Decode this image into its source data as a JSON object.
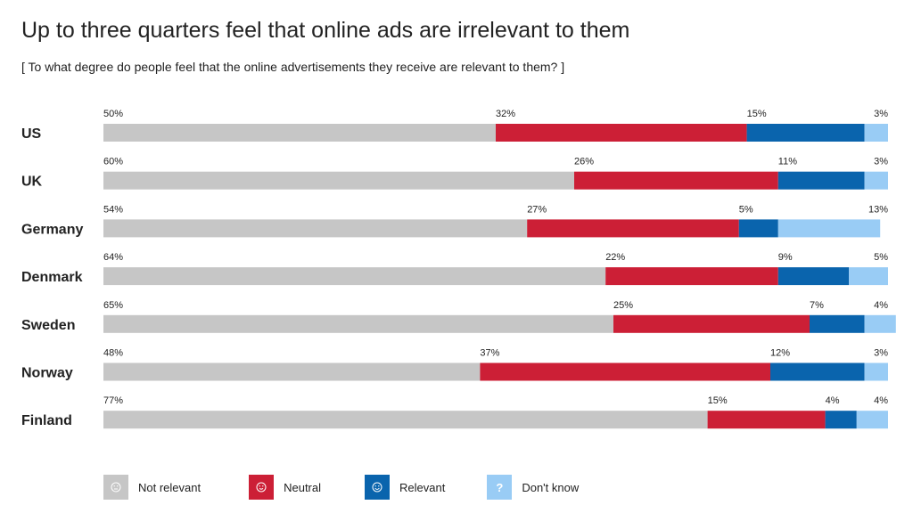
{
  "title": "Up to three quarters feel that online ads are irrelevant to them",
  "subtitle": "[ To what degree do people feel that the online advertisements they receive are relevant to them? ]",
  "colors": {
    "not_relevant": "#c6c6c6",
    "neutral": "#cc1f36",
    "relevant": "#0a64ad",
    "dont_know": "#99ccf5"
  },
  "legend": {
    "not_relevant": "Not relevant",
    "neutral": "Neutral",
    "relevant": "Relevant",
    "dont_know": "Don't know",
    "dont_know_glyph": "?"
  },
  "chart_data": {
    "type": "bar",
    "orientation": "horizontal",
    "stacked": true,
    "categories": [
      "US",
      "UK",
      "Germany",
      "Denmark",
      "Sweden",
      "Norway",
      "Finland"
    ],
    "series": [
      {
        "name": "Not relevant",
        "values": [
          50,
          60,
          54,
          64,
          65,
          48,
          77
        ]
      },
      {
        "name": "Neutral",
        "values": [
          32,
          26,
          27,
          22,
          25,
          37,
          15
        ]
      },
      {
        "name": "Relevant",
        "values": [
          15,
          11,
          5,
          9,
          7,
          12,
          4
        ]
      },
      {
        "name": "Don't know",
        "values": [
          3,
          3,
          13,
          5,
          4,
          3,
          4
        ]
      }
    ],
    "value_suffix": "%",
    "xlim": [
      0,
      100
    ],
    "legend_position": "bottom",
    "grid": false
  }
}
